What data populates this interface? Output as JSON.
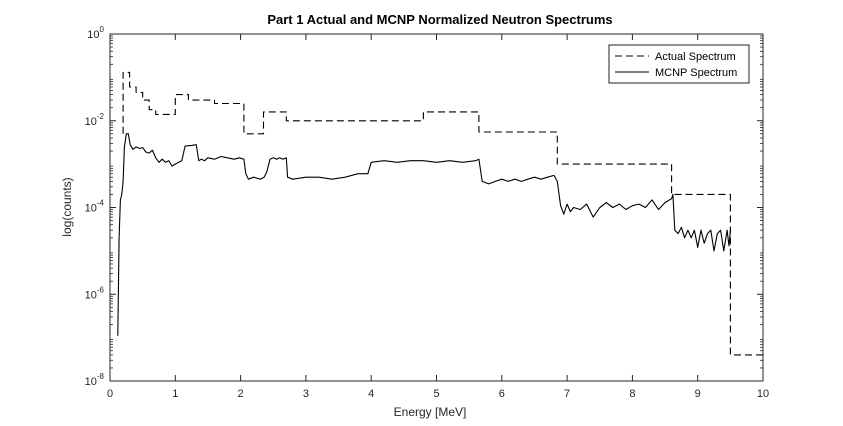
{
  "chart_data": {
    "type": "line",
    "title": "Part 1 Actual and MCNP Normalized Neutron Spectrums",
    "xlabel": "Energy [MeV]",
    "ylabel": "log(counts)",
    "xlim": [
      0,
      10
    ],
    "ylim": [
      1e-08,
      1
    ],
    "yscale": "log",
    "grid": false,
    "legend_position": "top-right",
    "x_ticks": [
      {
        "v": 0,
        "label": "0"
      },
      {
        "v": 1,
        "label": "1"
      },
      {
        "v": 2,
        "label": "2"
      },
      {
        "v": 3,
        "label": "3"
      },
      {
        "v": 4,
        "label": "4"
      },
      {
        "v": 5,
        "label": "5"
      },
      {
        "v": 6,
        "label": "6"
      },
      {
        "v": 7,
        "label": "7"
      },
      {
        "v": 8,
        "label": "8"
      },
      {
        "v": 9,
        "label": "9"
      },
      {
        "v": 10,
        "label": "10"
      }
    ],
    "y_ticks": [
      {
        "exp": -8,
        "base": "10",
        "sup": "-8"
      },
      {
        "exp": -6,
        "base": "10",
        "sup": "-6"
      },
      {
        "exp": -4,
        "base": "10",
        "sup": "-4"
      },
      {
        "exp": -2,
        "base": "10",
        "sup": "-2"
      },
      {
        "exp": 0,
        "base": "10",
        "sup": "0"
      }
    ],
    "series": [
      {
        "name": "Actual Spectrum",
        "line_style": "dashed",
        "color": "#000000",
        "x": [
          0.2,
          0.2,
          0.3,
          0.3,
          0.4,
          0.4,
          0.5,
          0.5,
          0.6,
          0.6,
          0.7,
          0.7,
          0.8,
          0.8,
          1.0,
          1.0,
          1.2,
          1.2,
          1.6,
          1.6,
          2.05,
          2.05,
          2.35,
          2.35,
          2.7,
          2.7,
          4.8,
          4.8,
          5.65,
          5.65,
          6.85,
          6.85,
          8.6,
          8.6,
          9.5,
          9.5,
          10.0
        ],
        "y": [
          0.005,
          0.13,
          0.13,
          0.06,
          0.06,
          0.045,
          0.045,
          0.03,
          0.03,
          0.018,
          0.018,
          0.014,
          0.014,
          0.014,
          0.014,
          0.04,
          0.04,
          0.03,
          0.03,
          0.025,
          0.025,
          0.005,
          0.005,
          0.016,
          0.016,
          0.01,
          0.01,
          0.016,
          0.016,
          0.0055,
          0.0055,
          0.001,
          0.001,
          0.0002,
          0.0002,
          4e-08,
          4e-08
        ]
      },
      {
        "name": "MCNP Spectrum",
        "line_style": "solid",
        "color": "#000000",
        "x": [
          0.12,
          0.14,
          0.16,
          0.18,
          0.2,
          0.22,
          0.25,
          0.28,
          0.31,
          0.35,
          0.4,
          0.45,
          0.5,
          0.55,
          0.6,
          0.65,
          0.7,
          0.75,
          0.8,
          0.85,
          0.9,
          0.95,
          1.0,
          1.05,
          1.1,
          1.15,
          1.25,
          1.32,
          1.36,
          1.4,
          1.45,
          1.5,
          1.6,
          1.7,
          1.8,
          1.9,
          1.98,
          2.05,
          2.08,
          2.12,
          2.2,
          2.3,
          2.36,
          2.4,
          2.45,
          2.5,
          2.55,
          2.6,
          2.65,
          2.7,
          2.72,
          2.8,
          3.0,
          3.2,
          3.4,
          3.6,
          3.8,
          3.95,
          4.0,
          4.2,
          4.4,
          4.6,
          4.8,
          5.0,
          5.2,
          5.4,
          5.6,
          5.65,
          5.7,
          5.8,
          5.9,
          6.0,
          6.1,
          6.2,
          6.3,
          6.4,
          6.5,
          6.6,
          6.7,
          6.8,
          6.85,
          6.9,
          6.95,
          7.0,
          7.05,
          7.1,
          7.2,
          7.3,
          7.4,
          7.5,
          7.6,
          7.7,
          7.8,
          7.9,
          8.0,
          8.1,
          8.2,
          8.3,
          8.4,
          8.5,
          8.6,
          8.62,
          8.65,
          8.7,
          8.75,
          8.8,
          8.85,
          8.9,
          8.95,
          9.0,
          9.05,
          9.1,
          9.15,
          9.2,
          9.25,
          9.3,
          9.35,
          9.4,
          9.45,
          9.48,
          9.5
        ],
        "y": [
          1.1e-07,
          2e-05,
          0.00015,
          0.0002,
          0.0004,
          0.0025,
          0.005,
          0.005,
          0.0028,
          0.0022,
          0.0025,
          0.0023,
          0.0024,
          0.0019,
          0.0018,
          0.0021,
          0.0014,
          0.0011,
          0.0013,
          0.0011,
          0.0012,
          0.0009,
          0.001,
          0.0011,
          0.0012,
          0.0026,
          0.0027,
          0.0028,
          0.0012,
          0.0013,
          0.0012,
          0.0014,
          0.0013,
          0.0015,
          0.0014,
          0.0013,
          0.0014,
          0.0013,
          0.0006,
          0.00045,
          0.0005,
          0.00045,
          0.0005,
          0.00065,
          0.0013,
          0.0014,
          0.0013,
          0.0014,
          0.0013,
          0.0014,
          0.0005,
          0.00045,
          0.0005,
          0.0005,
          0.00045,
          0.0005,
          0.0006,
          0.0006,
          0.0011,
          0.0012,
          0.0011,
          0.0012,
          0.0012,
          0.0011,
          0.0012,
          0.0011,
          0.0012,
          0.0013,
          0.0004,
          0.00035,
          0.0004,
          0.00045,
          0.0004,
          0.00045,
          0.0004,
          0.00045,
          0.0005,
          0.00045,
          0.0005,
          0.00055,
          0.0004,
          0.00011,
          7e-05,
          0.00012,
          8e-05,
          0.0001,
          9e-05,
          0.00012,
          6e-05,
          0.0001,
          0.00013,
          0.0001,
          0.00012,
          9e-05,
          0.00011,
          0.00012,
          0.0001,
          0.00015,
          9e-05,
          0.00013,
          0.00016,
          0.0002,
          3e-05,
          2.5e-05,
          3.5e-05,
          2e-05,
          3e-05,
          2e-05,
          3e-05,
          1.2e-05,
          3e-05,
          1.5e-05,
          2.5e-05,
          3e-05,
          1e-05,
          2.5e-05,
          3e-05,
          1e-05,
          3e-05,
          1.3e-05,
          3e-05
        ]
      }
    ]
  }
}
